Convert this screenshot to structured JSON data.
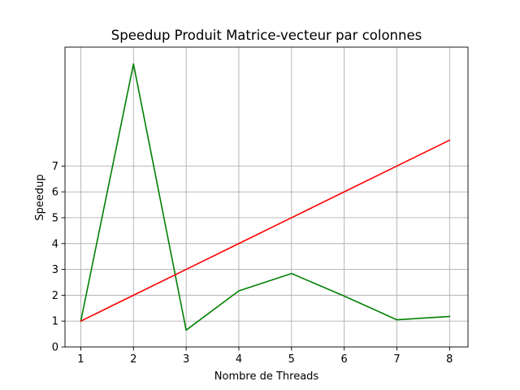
{
  "chart_data": {
    "type": "line",
    "title": "Speedup Produit Matrice-vecteur par colonnes",
    "xlabel": "Nombre de Threads",
    "ylabel": "Speedup",
    "x": [
      1,
      2,
      3,
      4,
      5,
      6,
      7,
      8
    ],
    "xlim": [
      0.7,
      8.35
    ],
    "ylim": [
      0,
      11.6
    ],
    "xticks": [
      1,
      2,
      3,
      4,
      5,
      6,
      7,
      8
    ],
    "yticks": [
      0,
      1,
      2,
      3,
      4,
      5,
      6,
      7
    ],
    "grid": true,
    "series": [
      {
        "color": "#008000",
        "values": [
          1.0,
          10.95,
          0.65,
          2.17,
          2.84,
          1.97,
          1.05,
          1.18
        ]
      },
      {
        "color": "#ff0000",
        "values": [
          1,
          2,
          3,
          4,
          5,
          6,
          7,
          8
        ]
      }
    ]
  }
}
